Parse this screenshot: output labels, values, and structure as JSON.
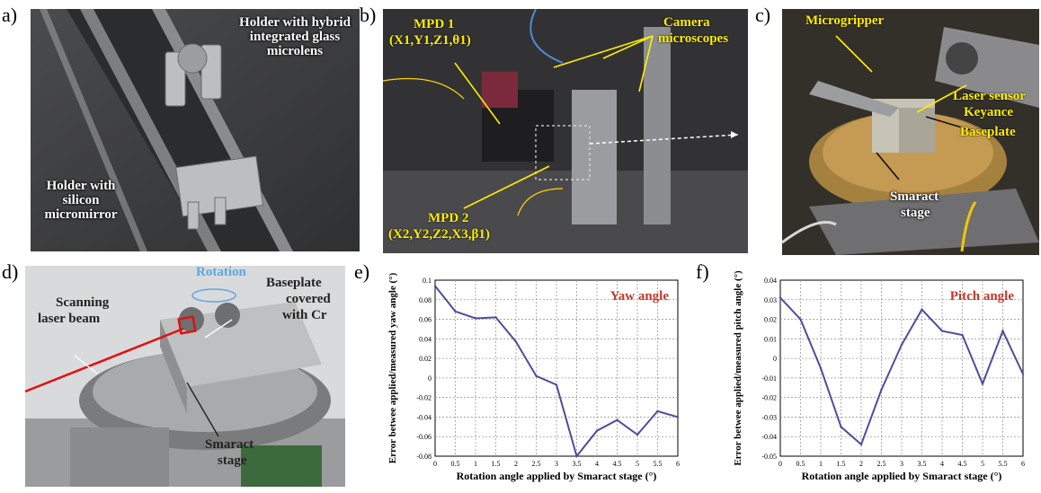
{
  "panels": {
    "a": {
      "letter": "a)",
      "labels": {
        "top": "Holder with hybrid integrated glass microlens",
        "bottom": "Holder with silicon micromirror"
      }
    },
    "b": {
      "letter": "b)",
      "labels": {
        "mpd1_line1": "MPD 1",
        "mpd1_line2": "(X1,Y1,Z1,θ1)",
        "camera_line1": "Camera",
        "camera_line2": "microscopes",
        "mpd2_line1": "MPD 2",
        "mpd2_line2": "(X2,Y2,Z2,X3,β1)"
      }
    },
    "c": {
      "letter": "c)",
      "labels": {
        "microgripper": "Microgripper",
        "laser_line1": "Laser sensor",
        "laser_line2": "Keyance",
        "baseplate": "Baseplate",
        "smaract_line1": "Smaract",
        "smaract_line2": "stage"
      }
    },
    "d": {
      "letter": "d)",
      "labels": {
        "rotation": "Rotation",
        "scanning_line1": "Scanning",
        "scanning_line2": "laser beam",
        "baseplate_line1": "Baseplate",
        "baseplate_line2": "covered",
        "baseplate_line3": "with Cr",
        "smaract_line1": "Smaract",
        "smaract_line2": "stage"
      }
    },
    "e": {
      "letter": "e)"
    },
    "f": {
      "letter": "f)"
    }
  },
  "chart_data": [
    {
      "type": "line",
      "title": "Yaw angle",
      "xlabel": "Rotation angle applied by Smaract stage (°)",
      "ylabel": "Error betwee applied/measured yaw angle (°)",
      "xlim": [
        0,
        6
      ],
      "ylim": [
        -0.08,
        0.1
      ],
      "xticks": [
        "0",
        "0.5",
        "1",
        "1.5",
        "2",
        "2.5",
        "3",
        "3.5",
        "4",
        "4.5",
        "5",
        "5.5",
        "6"
      ],
      "yticks": [
        "0.1",
        "0.08",
        "0.06",
        "0.04",
        "0.02",
        "0",
        "-0.02",
        "-0.04",
        "-0.06",
        "-0.08"
      ],
      "grid": true,
      "color": "#4b4f9a",
      "title_color": "#c0392b",
      "x": [
        0,
        0.5,
        1,
        1.5,
        2,
        2.5,
        3,
        3.5,
        4,
        4.5,
        5,
        5.5,
        6
      ],
      "y": [
        0.094,
        0.068,
        0.061,
        0.062,
        0.037,
        0.002,
        -0.007,
        -0.08,
        -0.054,
        -0.043,
        -0.058,
        -0.034,
        -0.04
      ]
    },
    {
      "type": "line",
      "title": "Pitch angle",
      "xlabel": "Rotation angle applied by Smaract stage (°)",
      "ylabel": "Error betwee applied/measured pitch angle (°)",
      "xlim": [
        0,
        6
      ],
      "ylim": [
        -0.05,
        0.04
      ],
      "xticks": [
        "0",
        "0.5",
        "1",
        "1.5",
        "2",
        "2.5",
        "3",
        "3.5",
        "4",
        "4.5",
        "5",
        "5.5",
        "6"
      ],
      "yticks": [
        "0.04",
        "0.03",
        "0.02",
        "0.01",
        "0",
        "-0.01",
        "-0.02",
        "-0.03",
        "-0.04",
        "-0.05"
      ],
      "grid": true,
      "color": "#4b4f9a",
      "title_color": "#c0392b",
      "x": [
        0,
        0.5,
        1,
        1.5,
        2,
        2.5,
        3,
        3.5,
        4,
        4.5,
        5,
        5.5,
        6
      ],
      "y": [
        0.031,
        0.02,
        -0.005,
        -0.035,
        -0.044,
        -0.016,
        0.007,
        0.025,
        0.014,
        0.012,
        -0.013,
        0.014,
        -0.008
      ]
    }
  ]
}
